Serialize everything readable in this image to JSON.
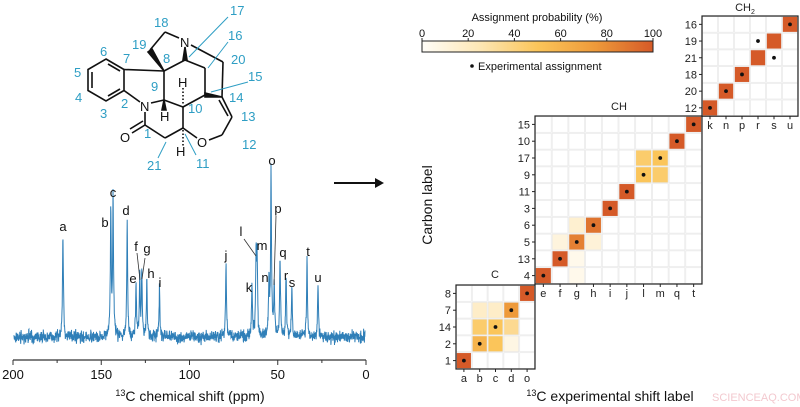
{
  "molecule": {
    "atoms": {
      "N_top": "N",
      "N_amide": "N",
      "O_carbonyl": "O",
      "O_ether": "O",
      "H9": "H",
      "H10": "H",
      "H11": "H"
    },
    "carbon_numbers": [
      "1",
      "2",
      "3",
      "4",
      "5",
      "6",
      "7",
      "8",
      "9",
      "10",
      "11",
      "12",
      "13",
      "14",
      "15",
      "16",
      "17",
      "18",
      "19",
      "20",
      "21"
    ]
  },
  "spectrum": {
    "xlabel_sup": "13",
    "xlabel": "C chemical shift (ppm)",
    "xlim": [
      200,
      0
    ],
    "xticks": [
      "200",
      "150",
      "100",
      "50",
      "0"
    ],
    "line_color": "#2f7fb8",
    "peaks": [
      {
        "label": "a",
        "ppm": 171.7,
        "intensity": 0.61
      },
      {
        "label": "b",
        "ppm": 144.6,
        "intensity": 0.76
      },
      {
        "label": "c",
        "ppm": 143.3,
        "intensity": 0.8
      },
      {
        "label": "d",
        "ppm": 135.3,
        "intensity": 0.69
      },
      {
        "label": "e",
        "ppm": 130.3,
        "intensity": 0.32
      },
      {
        "label": "f",
        "ppm": 128.2,
        "intensity": 0.35
      },
      {
        "label": "g",
        "ppm": 127.0,
        "intensity": 0.36
      },
      {
        "label": "h",
        "ppm": 124.2,
        "intensity": 0.33
      },
      {
        "label": "i",
        "ppm": 117.0,
        "intensity": 0.29
      },
      {
        "label": "j",
        "ppm": 79.3,
        "intensity": 0.44
      },
      {
        "label": "k",
        "ppm": 64.6,
        "intensity": 0.3
      },
      {
        "label": "l",
        "ppm": 62.3,
        "intensity": 0.45
      },
      {
        "label": "m",
        "ppm": 61.7,
        "intensity": 0.46
      },
      {
        "label": "n",
        "ppm": 55.0,
        "intensity": 0.32
      },
      {
        "label": "o",
        "ppm": 53.8,
        "intensity": 1.0
      },
      {
        "label": "p",
        "ppm": 52.0,
        "intensity": 0.3
      },
      {
        "label": "q",
        "ppm": 48.7,
        "intensity": 0.46
      },
      {
        "label": "r",
        "ppm": 45.3,
        "intensity": 0.33
      },
      {
        "label": "s",
        "ppm": 42.0,
        "intensity": 0.3
      },
      {
        "label": "t",
        "ppm": 33.4,
        "intensity": 0.46
      },
      {
        "label": "u",
        "ppm": 27.2,
        "intensity": 0.3
      }
    ]
  },
  "chart_data": {
    "type": "heatmap",
    "ylabel": "Carbon label",
    "xlabel_sup": "13",
    "xlabel": "C experimental shift label",
    "colorbar": {
      "title": "Assignment probability (%)",
      "range": [
        0,
        100
      ],
      "ticks": [
        "0",
        "20",
        "40",
        "60",
        "80",
        "100"
      ],
      "colors": [
        "#fffdf8",
        "#fde7b5",
        "#fbc55a",
        "#ee9a3a",
        "#d55a28"
      ]
    },
    "legend": {
      "dot_label": "Experimental assignment"
    },
    "blocks": [
      {
        "title": "C",
        "title_sub": "",
        "rows": [
          "8",
          "7",
          "14",
          "2",
          "1"
        ],
        "cols": [
          "a",
          "b",
          "c",
          "d",
          "o"
        ],
        "cells": [
          {
            "row": "1",
            "col": "a",
            "p": 100
          },
          {
            "row": "2",
            "col": "b",
            "p": 60
          },
          {
            "row": "2",
            "col": "c",
            "p": 50
          },
          {
            "row": "2",
            "col": "d",
            "p": 8
          },
          {
            "row": "14",
            "col": "b",
            "p": 45
          },
          {
            "row": "14",
            "col": "c",
            "p": 50
          },
          {
            "row": "14",
            "col": "d",
            "p": 35
          },
          {
            "row": "7",
            "col": "b",
            "p": 18
          },
          {
            "row": "7",
            "col": "c",
            "p": 18
          },
          {
            "row": "7",
            "col": "d",
            "p": 75
          },
          {
            "row": "8",
            "col": "o",
            "p": 100
          }
        ],
        "experimental": [
          [
            "1",
            "a"
          ],
          [
            "2",
            "b"
          ],
          [
            "14",
            "c"
          ],
          [
            "7",
            "d"
          ],
          [
            "8",
            "o"
          ]
        ]
      },
      {
        "title": "CH",
        "title_sub": "",
        "rows": [
          "15",
          "10",
          "17",
          "9",
          "11",
          "3",
          "6",
          "5",
          "13",
          "4"
        ],
        "cols": [
          "e",
          "f",
          "g",
          "h",
          "i",
          "j",
          "l",
          "m",
          "q",
          "t"
        ],
        "cells": [
          {
            "row": "4",
            "col": "e",
            "p": 100
          },
          {
            "row": "4",
            "col": "g",
            "p": 5
          },
          {
            "row": "13",
            "col": "f",
            "p": 100
          },
          {
            "row": "13",
            "col": "g",
            "p": 5
          },
          {
            "row": "5",
            "col": "f",
            "p": 10
          },
          {
            "row": "5",
            "col": "g",
            "p": 85
          },
          {
            "row": "5",
            "col": "h",
            "p": 12
          },
          {
            "row": "6",
            "col": "g",
            "p": 15
          },
          {
            "row": "6",
            "col": "h",
            "p": 90
          },
          {
            "row": "3",
            "col": "i",
            "p": 100
          },
          {
            "row": "11",
            "col": "j",
            "p": 100
          },
          {
            "row": "9",
            "col": "l",
            "p": 50
          },
          {
            "row": "9",
            "col": "m",
            "p": 45
          },
          {
            "row": "17",
            "col": "l",
            "p": 45
          },
          {
            "row": "17",
            "col": "m",
            "p": 50
          },
          {
            "row": "10",
            "col": "q",
            "p": 100
          },
          {
            "row": "15",
            "col": "t",
            "p": 100
          }
        ],
        "experimental": [
          [
            "4",
            "e"
          ],
          [
            "13",
            "f"
          ],
          [
            "5",
            "g"
          ],
          [
            "6",
            "h"
          ],
          [
            "3",
            "i"
          ],
          [
            "11",
            "j"
          ],
          [
            "9",
            "l"
          ],
          [
            "17",
            "m"
          ],
          [
            "10",
            "q"
          ],
          [
            "15",
            "t"
          ]
        ]
      },
      {
        "title": "CH",
        "title_sub": "2",
        "rows": [
          "16",
          "19",
          "21",
          "18",
          "20",
          "12"
        ],
        "cols": [
          "k",
          "n",
          "p",
          "r",
          "s",
          "u"
        ],
        "cells": [
          {
            "row": "12",
            "col": "k",
            "p": 100
          },
          {
            "row": "20",
            "col": "n",
            "p": 100
          },
          {
            "row": "18",
            "col": "p",
            "p": 100
          },
          {
            "row": "21",
            "col": "r",
            "p": 100
          },
          {
            "row": "19",
            "col": "s",
            "p": 100
          },
          {
            "row": "16",
            "col": "u",
            "p": 100
          }
        ],
        "experimental": [
          [
            "12",
            "k"
          ],
          [
            "20",
            "n"
          ],
          [
            "18",
            "p"
          ],
          [
            "19",
            "r"
          ],
          [
            "21",
            "s"
          ],
          [
            "16",
            "u"
          ]
        ]
      }
    ]
  },
  "watermark": "SCIENCEAQ.COM"
}
